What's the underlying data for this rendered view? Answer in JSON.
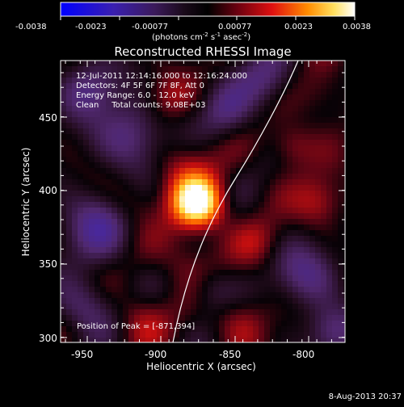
{
  "colorbar": {
    "tick_labels": [
      "-0.0038",
      "-0.0023",
      "-0.00077",
      "0.00077",
      "0.0023",
      "0.0038"
    ],
    "units_main": "(photons cm",
    "units_sup1": "-2",
    "units_mid1": " s",
    "units_sup2": "-1",
    "units_mid2": " asec",
    "units_sup3": "-2",
    "units_end": ")"
  },
  "image": {
    "title": "Reconstructed RHESSI Image",
    "info_lines": [
      "12-Jul-2011 12:14:16.000 to 12:16:24.000",
      "Detectors: 4F 5F 6F 7F 8F, Att 0",
      "Energy Range: 6.0 - 12.0 keV",
      "Clean     Total counts: 9.08E+03"
    ],
    "peak_label": "Position of Peak = [-871,394]"
  },
  "axes": {
    "xlabel": "Heliocentric X (arcsec)",
    "ylabel": "Heliocentric Y (arcsec)",
    "x_ticks": [
      "-950",
      "-900",
      "-850",
      "-800"
    ],
    "y_ticks": [
      "450",
      "400",
      "350",
      "300"
    ]
  },
  "footer": {
    "date": "8-Aug-2013 20:37"
  },
  "colors": {
    "background": "#000000",
    "foreground": "#ffffff"
  }
}
